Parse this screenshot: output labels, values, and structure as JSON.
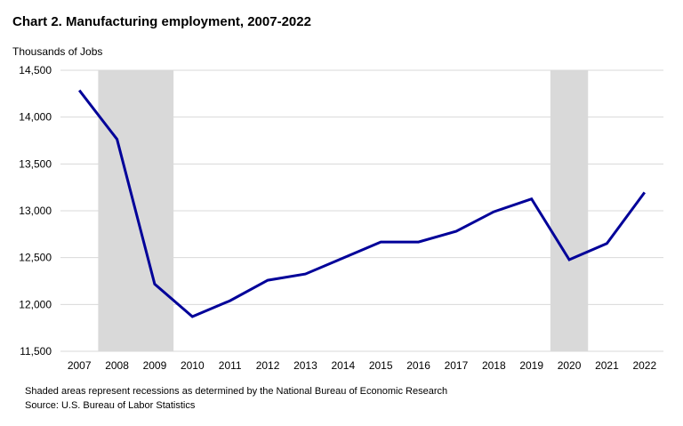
{
  "chart_data": {
    "type": "line",
    "title": "Chart 2. Manufacturing employment, 2007-2022",
    "ylabel": "Thousands of Jobs",
    "xlabel": "",
    "categories": [
      "2007",
      "2008",
      "2009",
      "2010",
      "2011",
      "2012",
      "2013",
      "2014",
      "2015",
      "2016",
      "2017",
      "2018",
      "2019",
      "2020",
      "2021",
      "2022"
    ],
    "series": [
      {
        "name": "Manufacturing employment",
        "color": "#000099",
        "values": [
          14285,
          13763,
          12218,
          11870,
          12040,
          12259,
          12325,
          12496,
          12667,
          12667,
          12781,
          12990,
          13126,
          12478,
          12651,
          13196
        ]
      }
    ],
    "recessions": [
      {
        "start": 2007.5,
        "end": 2009.5
      },
      {
        "start": 2019.5,
        "end": 2020.5
      }
    ],
    "recession_color": "#d9d9d9",
    "ylim": [
      11500,
      14500
    ],
    "yticks": [
      11500,
      12000,
      12500,
      13000,
      13500,
      14000,
      14500
    ],
    "ytick_labels": [
      "11,500",
      "12,000",
      "12,500",
      "13,000",
      "13,500",
      "14,000",
      "14,500"
    ],
    "grid": true,
    "legend": "none",
    "notes": [
      "Shaded areas represent recessions as determined by the National Bureau of Economic Research",
      "Source: U.S. Bureau of Labor Statistics"
    ]
  }
}
